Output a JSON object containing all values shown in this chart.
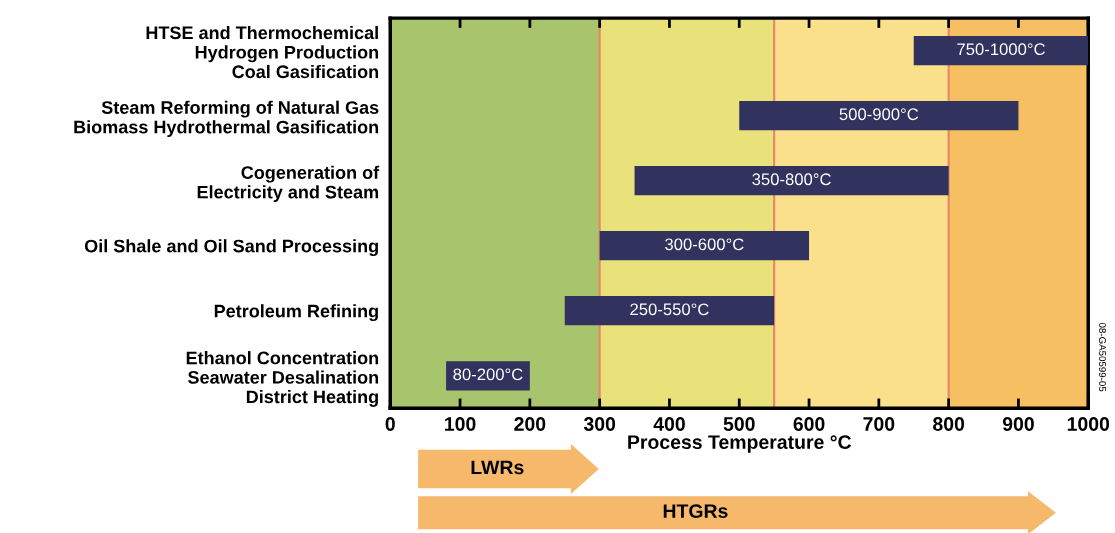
{
  "chart_data": {
    "type": "bar",
    "orientation": "horizontal",
    "xlabel": "Process Temperature °C",
    "categories": [
      "HTSE and Thermochemical\nHydrogen Production\nCoal Gasification",
      "Steam Reforming of Natural Gas\nBiomass Hydrothermal Gasification",
      "Cogeneration of\nElectricity and Steam",
      "Oil Shale and Oil Sand Processing",
      "Petroleum Refining",
      "Ethanol Concentration\nSeawater Desalination\nDistrict Heating"
    ],
    "base": [
      750,
      500,
      350,
      300,
      250,
      80
    ],
    "values": [
      250,
      400,
      450,
      300,
      300,
      120
    ],
    "value_labels": [
      "750-1000°C",
      "500-900°C",
      "350-800°C",
      "300-600°C",
      "250-550°C",
      "80-200°C"
    ],
    "color": "#32325f",
    "xlim": [
      0,
      1000
    ],
    "xticks": [
      0,
      100,
      200,
      300,
      400,
      500,
      600,
      700,
      800,
      900,
      1000
    ],
    "bands": [
      {
        "axis": "x",
        "from": 0,
        "to": 300,
        "color": "#a8c46c"
      },
      {
        "axis": "x",
        "from": 300,
        "to": 550,
        "color": "#e9e27a"
      },
      {
        "axis": "x",
        "from": 550,
        "to": 800,
        "color": "#fbe08c"
      },
      {
        "axis": "x",
        "from": 800,
        "to": 1000,
        "color": "#f6bf62"
      }
    ],
    "ref_lines": [
      {
        "axis": "x",
        "value": 300,
        "color": "#e8846a"
      },
      {
        "axis": "x",
        "value": 550,
        "color": "#e8846a"
      },
      {
        "axis": "x",
        "value": 800,
        "color": "#e8846a"
      }
    ],
    "annotations": [
      "LWRs",
      "HTGRs",
      "08-GA50599-05"
    ],
    "grid": false,
    "legend": false
  }
}
